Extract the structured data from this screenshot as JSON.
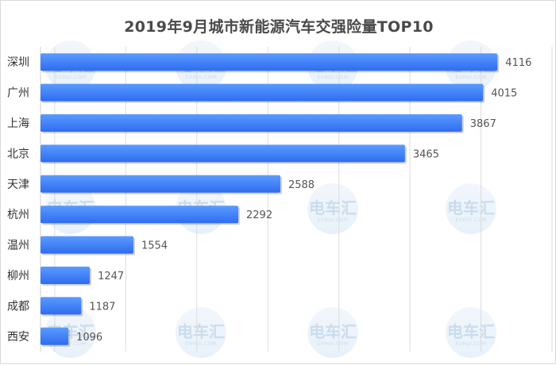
{
  "chart_data": {
    "type": "bar",
    "orientation": "horizontal",
    "title": "2019年9月城市新能源汽车交强险量TOP10",
    "categories": [
      "深圳",
      "广州",
      "上海",
      "北京",
      "天津",
      "杭州",
      "温州",
      "柳州",
      "成都",
      "西安"
    ],
    "values": [
      4116,
      4015,
      3867,
      3465,
      2588,
      2292,
      1554,
      1247,
      1187,
      1096
    ],
    "data_labels": [
      "4116",
      "4015",
      "3867",
      "3465",
      "2588",
      "2292",
      "1554",
      "1247",
      "1187",
      "1096"
    ],
    "xlim": [
      900,
      4500
    ],
    "grid": true,
    "legend": "none",
    "bar_color": "#2f6cf0",
    "bar_color_light": "#5a9bff"
  },
  "watermark": {
    "text": "电车汇",
    "subtext": "EVHUI.COM"
  }
}
